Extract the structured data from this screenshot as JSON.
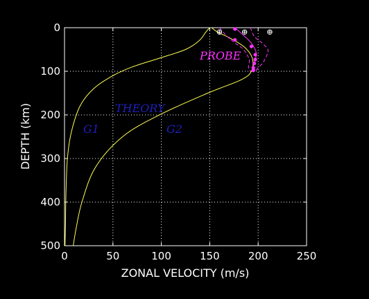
{
  "chart_data": {
    "type": "line",
    "xlabel": "ZONAL VELOCITY (m/s)",
    "ylabel": "DEPTH (km)",
    "xlim": [
      0,
      250
    ],
    "ylim": [
      500,
      0
    ],
    "y_axis_inverted": true,
    "xticks": [
      "0",
      "50",
      "100",
      "150",
      "200",
      "250"
    ],
    "yticks": [
      "0",
      "100",
      "200",
      "300",
      "400",
      "500"
    ],
    "grid": "dotted",
    "colors": {
      "background": "#000000",
      "axes": "#ffffff",
      "theory": "#ffff55",
      "probe": "#ff33ff",
      "theory_label": "#1f1fbf"
    },
    "series": [
      {
        "name": "G1",
        "x": [
          150,
          146,
          139,
          125,
          98,
          70,
          50,
          30,
          16,
          7,
          3,
          1.5,
          1,
          0.5
        ],
        "y": [
          0,
          10,
          30,
          50,
          70,
          90,
          110,
          140,
          180,
          240,
          300,
          380,
          450,
          500
        ]
      },
      {
        "name": "G2",
        "x": [
          152,
          158,
          172,
          186,
          194,
          193,
          182,
          148,
          98,
          60,
          32,
          18,
          12,
          9
        ],
        "y": [
          0,
          10,
          25,
          45,
          70,
          100,
          120,
          150,
          200,
          250,
          320,
          400,
          460,
          500
        ]
      }
    ],
    "probe": {
      "profile": {
        "x": [
          176,
          180,
          184,
          190,
          195,
          198,
          197,
          195,
          194
        ],
        "y": [
          0,
          8,
          16,
          28,
          42,
          58,
          75,
          88,
          100
        ]
      },
      "error_low": {
        "x": [
          160,
          168,
          176,
          184,
          188,
          191,
          190,
          192
        ],
        "y": [
          0,
          20,
          35,
          48,
          60,
          75,
          90,
          100
        ]
      },
      "error_high": {
        "x": [
          192,
          196,
          204,
          210,
          209,
          205,
          200,
          197
        ],
        "y": [
          0,
          20,
          35,
          50,
          63,
          80,
          92,
          100
        ]
      },
      "points": [
        {
          "x": 176,
          "y": 3
        },
        {
          "x": 176,
          "y": 28
        },
        {
          "x": 193,
          "y": 43
        },
        {
          "x": 197,
          "y": 62
        },
        {
          "x": 197,
          "y": 73
        },
        {
          "x": 196,
          "y": 82
        },
        {
          "x": 195,
          "y": 92
        },
        {
          "x": 195,
          "y": 98
        }
      ],
      "markers_top": [
        {
          "x": 160,
          "y": 10
        },
        {
          "x": 186,
          "y": 10
        },
        {
          "x": 212,
          "y": 10
        }
      ]
    },
    "annotations": {
      "probe": "PROBE",
      "theory": "THEORY",
      "g1": "G1",
      "g2": "G2"
    }
  }
}
